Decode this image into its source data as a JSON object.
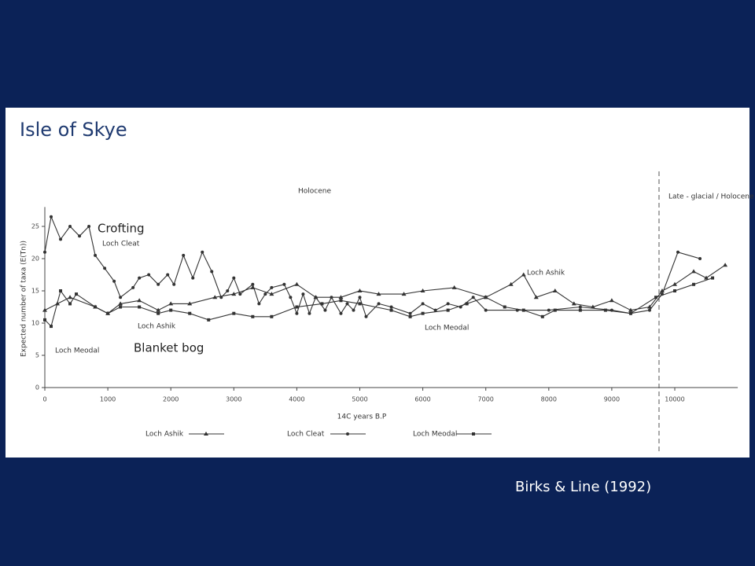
{
  "title": "Isle of Skye",
  "callouts": [
    "Crofting",
    "Blanket bog"
  ],
  "source": "Birks & Line (1992)",
  "chart_data": {
    "type": "line",
    "xlabel": "14C years B.P",
    "ylabel": "Expected number of taxa (E(Tn))",
    "annotations": [
      "Holocene",
      "Late - glacial / Holocene"
    ],
    "boundary_x": 9750,
    "xlim": [
      0,
      11000
    ],
    "xticks": [
      0,
      1000,
      2000,
      3000,
      4000,
      5000,
      6000,
      7000,
      8000,
      9000,
      10000
    ],
    "ylim": [
      0,
      28
    ],
    "yticks": [
      0,
      5,
      10,
      15,
      20,
      25
    ],
    "series": [
      {
        "name": "Loch Ashik",
        "color": "#333333",
        "marker": "triangle",
        "x": [
          0,
          200,
          400,
          800,
          1000,
          1200,
          1500,
          1800,
          2000,
          2300,
          2700,
          3000,
          3300,
          3600,
          4000,
          4300,
          4700,
          5000,
          5300,
          5700,
          6000,
          6500,
          7000,
          7400,
          7600,
          7800,
          8100,
          8400,
          8700,
          9000,
          9300,
          9600,
          9800,
          10000,
          10300,
          10500,
          10800
        ],
        "values": [
          12,
          13,
          14,
          12.5,
          11.5,
          13,
          13.5,
          12,
          13,
          13,
          14,
          14.5,
          15.5,
          14.5,
          16,
          14,
          14,
          15,
          14.5,
          14.5,
          15,
          15.5,
          14,
          16,
          17.5,
          14,
          15,
          13,
          12.5,
          13.5,
          12,
          12.5,
          15,
          16,
          18,
          17,
          19
        ]
      },
      {
        "name": "Loch Cleat",
        "color": "#333333",
        "marker": "dot",
        "x": [
          0,
          100,
          250,
          400,
          550,
          700,
          800,
          950,
          1100,
          1200,
          1400,
          1500,
          1650,
          1800,
          1950,
          2050,
          2200,
          2350,
          2500,
          2650,
          2800,
          2900,
          3000,
          3100,
          3300,
          3400,
          3500,
          3600,
          3800,
          3900,
          4000,
          4100,
          4200,
          4300,
          4450,
          4550,
          4700,
          4800,
          4900,
          5000,
          5100,
          5300,
          5500,
          5800,
          6000,
          6200,
          6400,
          6600,
          6800,
          7000,
          7500,
          8000,
          8500,
          9000,
          9300,
          9600,
          9800,
          10050,
          10400
        ],
        "values": [
          21,
          26.5,
          23,
          25,
          23.5,
          25,
          20.5,
          18.5,
          16.5,
          14,
          15.5,
          17,
          17.5,
          16,
          17.5,
          16,
          20.5,
          17,
          21,
          18,
          14,
          15,
          17,
          14.5,
          16,
          13,
          14.5,
          15.5,
          16,
          14,
          11.5,
          14.5,
          11.5,
          14,
          12,
          14,
          11.5,
          13,
          12,
          14,
          11,
          13,
          12.5,
          11.5,
          13,
          12,
          13,
          12.5,
          14,
          12,
          12,
          12,
          12.5,
          12,
          11.5,
          12,
          14.5,
          21,
          20
        ]
      },
      {
        "name": "Loch Meodal",
        "color": "#333333",
        "marker": "square",
        "x": [
          0,
          100,
          250,
          400,
          500,
          800,
          1000,
          1200,
          1500,
          1800,
          2000,
          2300,
          2600,
          3000,
          3300,
          3600,
          4000,
          4400,
          4700,
          5000,
          5500,
          5800,
          6000,
          6400,
          6700,
          7000,
          7300,
          7600,
          7900,
          8100,
          8500,
          8900,
          9300,
          9700,
          10000,
          10300,
          10600
        ],
        "values": [
          10.5,
          9.5,
          15,
          13,
          14.5,
          12.5,
          11.5,
          12.5,
          12.5,
          11.5,
          12,
          11.5,
          10.5,
          11.5,
          11,
          11,
          12.5,
          13,
          13.5,
          13,
          12,
          11,
          11.5,
          12,
          13,
          14,
          12.5,
          12,
          11,
          12,
          12,
          12,
          11.5,
          14,
          15,
          16,
          17
        ]
      }
    ]
  }
}
